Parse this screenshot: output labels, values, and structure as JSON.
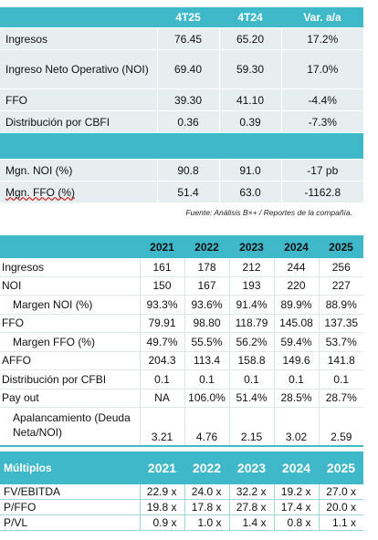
{
  "table1": {
    "headers": [
      "4T25",
      "4T24",
      "Var. a/a"
    ],
    "rows": [
      {
        "label": "Ingresos",
        "c1": "76.45",
        "c2": "65.20",
        "c3": "17.2%"
      },
      {
        "label": "Ingreso Neto Operativo (NOI)",
        "c1": "69.40",
        "c2": "59.30",
        "c3": "17.0%"
      },
      {
        "label": "FFO",
        "c1": "39.30",
        "c2": "41.10",
        "c3": "-4.4%"
      },
      {
        "label": "Distribución por CBFI",
        "c1": "0.36",
        "c2": "0.39",
        "c3": "-7.3%"
      }
    ],
    "rows2": [
      {
        "label": "Mgn. NOI (%)",
        "c1": "90.8",
        "c2": "91.0",
        "c3": "-17 pb"
      },
      {
        "label": "Mgn. FFO (%)",
        "c1": "51.4",
        "c2": "63.0",
        "c3": "-1162.8"
      }
    ]
  },
  "source_note": "Fuente: Análisis B×+ / Reportes de la compañía.",
  "table2": {
    "headers": [
      "2021",
      "2022",
      "2023",
      "2024",
      "2025"
    ],
    "rows": [
      {
        "label": "Ingresos",
        "vals": [
          "161",
          "178",
          "212",
          "244",
          "256"
        ]
      },
      {
        "label": "NOI",
        "vals": [
          "150",
          "167",
          "193",
          "220",
          "227"
        ]
      },
      {
        "label": "Margen NOI (%)",
        "vals": [
          "93.3%",
          "93.6%",
          "91.4%",
          "89.9%",
          "88.9%"
        ]
      },
      {
        "label": "FFO",
        "vals": [
          "79.91",
          "98.80",
          "118.79",
          "145.08",
          "137.35"
        ]
      },
      {
        "label": "Margen FFO (%)",
        "vals": [
          "49.7%",
          "55.5%",
          "56.2%",
          "59.4%",
          "53.7%"
        ]
      },
      {
        "label": "AFFO",
        "vals": [
          "204.3",
          "113.4",
          "158.8",
          "149.6",
          "141.8"
        ]
      },
      {
        "label": "Distribución por CFBI",
        "vals": [
          "0.1",
          "0.1",
          "0.1",
          "0.1",
          "0.1"
        ]
      },
      {
        "label": "Pay out",
        "vals": [
          "NA",
          "106.0%",
          "51.4%",
          "28.5%",
          "28.7%"
        ]
      },
      {
        "label": "Apalancamiento (Deuda Neta/NOI)",
        "vals": [
          "3.21",
          "4.76",
          "2.15",
          "3.02",
          "2.59"
        ]
      }
    ]
  },
  "table3": {
    "title": "Múltiplos",
    "headers": [
      "2021",
      "2022",
      "2023",
      "2024",
      "2025"
    ],
    "rows": [
      {
        "label": "FV/EBITDA",
        "vals": [
          "22.9 x",
          "24.0 x",
          "32.2 x",
          "19.2 x",
          "27.0 x"
        ]
      },
      {
        "label": "P/FFO",
        "vals": [
          "19.8 x",
          "17.8 x",
          "27.8 x",
          "17.4 x",
          "20.0 x"
        ]
      },
      {
        "label": "P/VL",
        "vals": [
          "0.9 x",
          "1.0 x",
          "1.4 x",
          "0.8 x",
          "1.1 x"
        ]
      }
    ]
  },
  "colors": {
    "accent": "#3fb8c9",
    "row_bg": "#e6eef0"
  }
}
